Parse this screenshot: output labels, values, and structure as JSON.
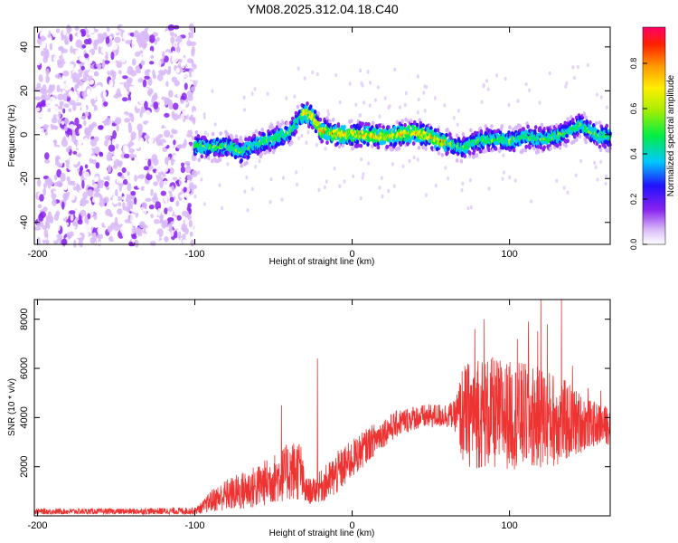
{
  "title": "YM08.2025.312.04.18.C40",
  "chart_data": [
    {
      "type": "heatmap",
      "xlabel": "Height of straight line (km)",
      "ylabel": "Frequency (Hz)",
      "xlim": [
        -202,
        164
      ],
      "ylim": [
        -50,
        49
      ],
      "xticks": [
        "-200",
        "-100",
        "0",
        "100"
      ],
      "yticks": [
        "-40",
        "-20",
        "0",
        "20",
        "40"
      ],
      "colorbar": {
        "label": "Normalized spectral amplitude",
        "range": [
          0,
          0.96
        ],
        "ticks": [
          "0.0",
          "0.2",
          "0.4",
          "0.6",
          "0.8"
        ]
      },
      "noise_region_x": [
        -200,
        -100
      ],
      "signal_trace": {
        "x": [
          -100,
          -90,
          -80,
          -70,
          -60,
          -50,
          -40,
          -35,
          -30,
          -25,
          -20,
          -10,
          0,
          10,
          20,
          30,
          40,
          50,
          60,
          70,
          80,
          90,
          100,
          110,
          120,
          130,
          140,
          145,
          150,
          155,
          160
        ],
        "freq": [
          -5,
          -6,
          -5,
          -8,
          -4,
          -2,
          1,
          6,
          10,
          8,
          2,
          0,
          0,
          0,
          -1,
          0,
          1,
          -1,
          -4,
          -6,
          -3,
          -2,
          -3,
          -1,
          -2,
          -1,
          2,
          5,
          2,
          0,
          -1
        ]
      }
    },
    {
      "type": "line",
      "xlabel": "Height of straight line (km)",
      "ylabel": "SNR (10 * v/v)",
      "xlim": [
        -202,
        164
      ],
      "ylim": [
        0,
        8800
      ],
      "xticks": [
        "-200",
        "-100",
        "0",
        "100"
      ],
      "yticks": [
        "2000",
        "4000",
        "6000",
        "8000"
      ],
      "series_color": "#ee3333",
      "envelope": {
        "x": [
          -200,
          -150,
          -100,
          -95,
          -90,
          -80,
          -70,
          -60,
          -50,
          -40,
          -33,
          -30,
          -25,
          -20,
          -15,
          -10,
          0,
          10,
          20,
          30,
          40,
          50,
          60,
          65,
          70,
          75,
          80,
          90,
          100,
          110,
          120,
          130,
          140,
          150,
          160,
          164
        ],
        "mean": [
          180,
          180,
          200,
          350,
          600,
          850,
          1000,
          1200,
          1500,
          1800,
          1900,
          1000,
          1000,
          1200,
          1400,
          1700,
          2300,
          2900,
          3400,
          3800,
          4000,
          4050,
          4100,
          4100,
          4100,
          4150,
          4200,
          4150,
          4100,
          4050,
          4000,
          3900,
          3800,
          3750,
          3700,
          3700
        ],
        "amp": [
          120,
          120,
          150,
          250,
          450,
          650,
          800,
          900,
          1000,
          1200,
          1300,
          600,
          500,
          650,
          800,
          900,
          800,
          700,
          600,
          550,
          500,
          500,
          500,
          550,
          2000,
          2200,
          2300,
          2300,
          2200,
          2200,
          2100,
          1900,
          1500,
          1000,
          800,
          800
        ]
      },
      "spikes": [
        {
          "x": -22,
          "y": 6400
        },
        {
          "x": -45,
          "y": 4500
        },
        {
          "x": 78,
          "y": 7600
        },
        {
          "x": 80,
          "y": 6300
        },
        {
          "x": 84,
          "y": 8000
        },
        {
          "x": 105,
          "y": 7200
        },
        {
          "x": 112,
          "y": 7900
        },
        {
          "x": 118,
          "y": 7500
        },
        {
          "x": 120,
          "y": 8800
        },
        {
          "x": 124,
          "y": 7800
        },
        {
          "x": 133,
          "y": 8800
        },
        {
          "x": 140,
          "y": 6100
        },
        {
          "x": 150,
          "y": 5200
        },
        {
          "x": 158,
          "y": 5100
        }
      ]
    }
  ]
}
